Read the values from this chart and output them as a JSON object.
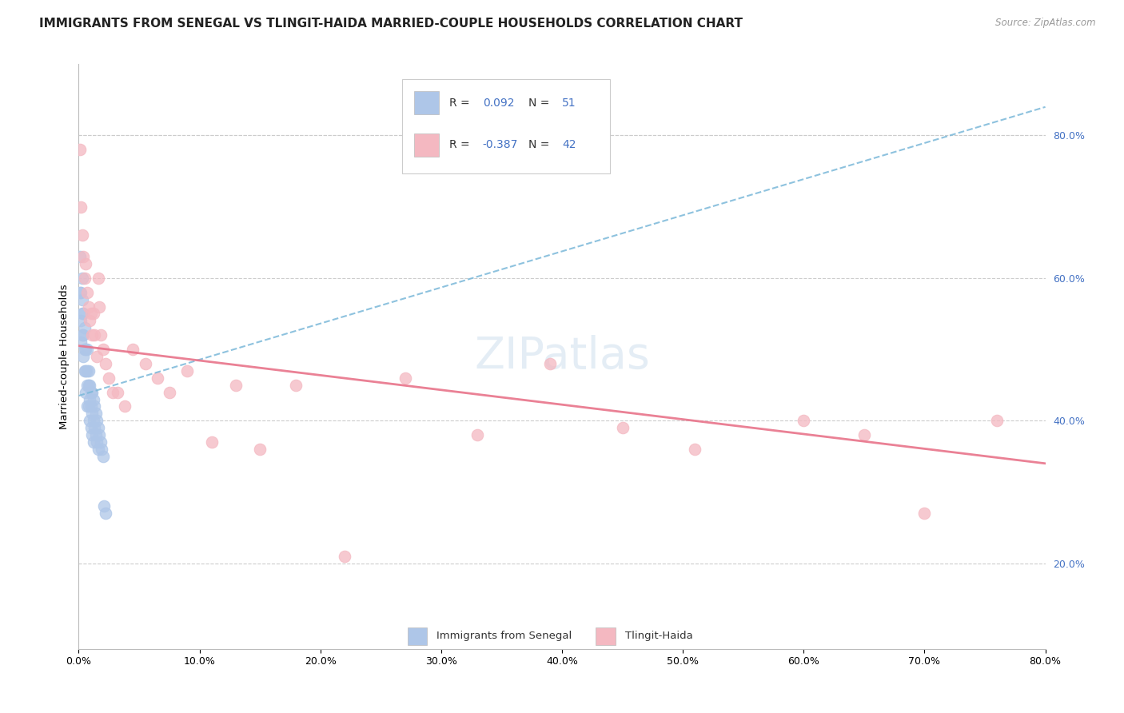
{
  "title": "IMMIGRANTS FROM SENEGAL VS TLINGIT-HAIDA MARRIED-COUPLE HOUSEHOLDS CORRELATION CHART",
  "source_text": "Source: ZipAtlas.com",
  "ylabel": "Married-couple Households",
  "x_ticks": [
    0.0,
    0.1,
    0.2,
    0.3,
    0.4,
    0.5,
    0.6,
    0.7,
    0.8
  ],
  "y_ticks_right": [
    0.2,
    0.4,
    0.6,
    0.8
  ],
  "xlim": [
    0.0,
    0.8
  ],
  "ylim": [
    0.08,
    0.9
  ],
  "blue_r": "0.092",
  "blue_n": "51",
  "pink_r": "-0.387",
  "pink_n": "42",
  "blue_scatter_x": [
    0.001,
    0.001,
    0.002,
    0.002,
    0.002,
    0.003,
    0.003,
    0.003,
    0.003,
    0.004,
    0.004,
    0.004,
    0.005,
    0.005,
    0.005,
    0.006,
    0.006,
    0.006,
    0.007,
    0.007,
    0.007,
    0.007,
    0.008,
    0.008,
    0.008,
    0.009,
    0.009,
    0.009,
    0.01,
    0.01,
    0.01,
    0.011,
    0.011,
    0.011,
    0.012,
    0.012,
    0.012,
    0.013,
    0.013,
    0.014,
    0.014,
    0.015,
    0.015,
    0.016,
    0.016,
    0.017,
    0.018,
    0.019,
    0.02,
    0.021,
    0.022
  ],
  "blue_scatter_y": [
    0.63,
    0.58,
    0.58,
    0.54,
    0.51,
    0.6,
    0.57,
    0.55,
    0.52,
    0.55,
    0.52,
    0.49,
    0.53,
    0.5,
    0.47,
    0.5,
    0.47,
    0.44,
    0.5,
    0.47,
    0.45,
    0.42,
    0.47,
    0.45,
    0.42,
    0.45,
    0.43,
    0.4,
    0.44,
    0.42,
    0.39,
    0.44,
    0.41,
    0.38,
    0.43,
    0.4,
    0.37,
    0.42,
    0.39,
    0.41,
    0.38,
    0.4,
    0.37,
    0.39,
    0.36,
    0.38,
    0.37,
    0.36,
    0.35,
    0.28,
    0.27
  ],
  "pink_scatter_x": [
    0.001,
    0.002,
    0.003,
    0.004,
    0.005,
    0.006,
    0.007,
    0.008,
    0.009,
    0.01,
    0.011,
    0.012,
    0.013,
    0.015,
    0.016,
    0.017,
    0.018,
    0.02,
    0.022,
    0.025,
    0.028,
    0.032,
    0.038,
    0.045,
    0.055,
    0.065,
    0.075,
    0.09,
    0.11,
    0.13,
    0.15,
    0.18,
    0.22,
    0.27,
    0.33,
    0.39,
    0.45,
    0.51,
    0.6,
    0.65,
    0.7,
    0.76
  ],
  "pink_scatter_y": [
    0.78,
    0.7,
    0.66,
    0.63,
    0.6,
    0.62,
    0.58,
    0.56,
    0.54,
    0.55,
    0.52,
    0.55,
    0.52,
    0.49,
    0.6,
    0.56,
    0.52,
    0.5,
    0.48,
    0.46,
    0.44,
    0.44,
    0.42,
    0.5,
    0.48,
    0.46,
    0.44,
    0.47,
    0.37,
    0.45,
    0.36,
    0.45,
    0.21,
    0.46,
    0.38,
    0.48,
    0.39,
    0.36,
    0.4,
    0.38,
    0.27,
    0.4
  ],
  "blue_line_x": [
    0.0,
    0.8
  ],
  "blue_line_y": [
    0.435,
    0.84
  ],
  "pink_line_x": [
    0.0,
    0.8
  ],
  "pink_line_y": [
    0.505,
    0.34
  ],
  "watermark": "ZIPatlas",
  "bg_color": "#ffffff",
  "blue_color": "#aec6e8",
  "pink_color": "#f4b8c1",
  "blue_line_color": "#7ab8d9",
  "pink_line_color": "#e8738a",
  "grid_color": "#cccccc",
  "title_fontsize": 11,
  "axis_label_fontsize": 9.5,
  "tick_fontsize": 9,
  "right_tick_color": "#4472c4",
  "legend_fontsize": 10
}
